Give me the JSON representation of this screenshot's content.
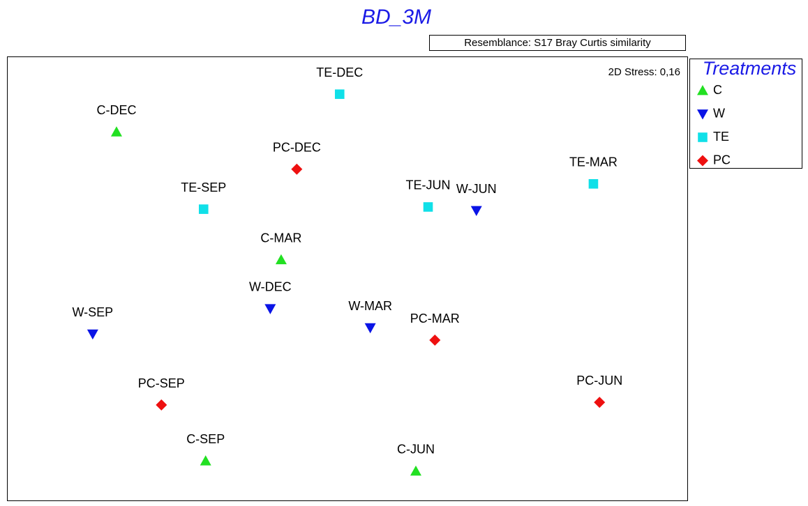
{
  "chart_data": {
    "type": "scatter",
    "title": "BD_3M",
    "subtitle": "Resemblance: S17 Bray Curtis similarity",
    "annotation": "2D Stress: 0,16",
    "legend_title": "Treatments",
    "legend": "outside-right",
    "xlim": [
      0,
      100
    ],
    "ylim": [
      0,
      100
    ],
    "series": [
      {
        "name": "C",
        "color": "#22e022",
        "marker": "triangle-up",
        "labels": [
          "C-DEC",
          "C-MAR",
          "C-SEP",
          "C-JUN"
        ],
        "x": [
          16.1,
          40.3,
          29.2,
          60.1
        ],
        "y": [
          83.0,
          54.2,
          8.9,
          6.6
        ]
      },
      {
        "name": "W",
        "color": "#0a14e6",
        "marker": "triangle-down",
        "labels": [
          "W-JUN",
          "W-DEC",
          "W-SEP",
          "W-MAR"
        ],
        "x": [
          69.0,
          38.7,
          12.6,
          53.4
        ],
        "y": [
          65.3,
          43.2,
          37.5,
          38.9
        ]
      },
      {
        "name": "TE",
        "color": "#10e0e8",
        "marker": "square",
        "labels": [
          "TE-DEC",
          "TE-SEP",
          "TE-JUN",
          "TE-MAR"
        ],
        "x": [
          48.9,
          28.9,
          61.9,
          86.2
        ],
        "y": [
          91.5,
          65.6,
          66.1,
          71.3
        ]
      },
      {
        "name": "PC",
        "color": "#ee1010",
        "marker": "diamond",
        "labels": [
          "PC-DEC",
          "PC-MAR",
          "PC-JUN",
          "PC-SEP"
        ],
        "x": [
          42.6,
          62.9,
          87.1,
          22.7
        ],
        "y": [
          74.6,
          36.1,
          22.1,
          21.5
        ]
      }
    ]
  }
}
